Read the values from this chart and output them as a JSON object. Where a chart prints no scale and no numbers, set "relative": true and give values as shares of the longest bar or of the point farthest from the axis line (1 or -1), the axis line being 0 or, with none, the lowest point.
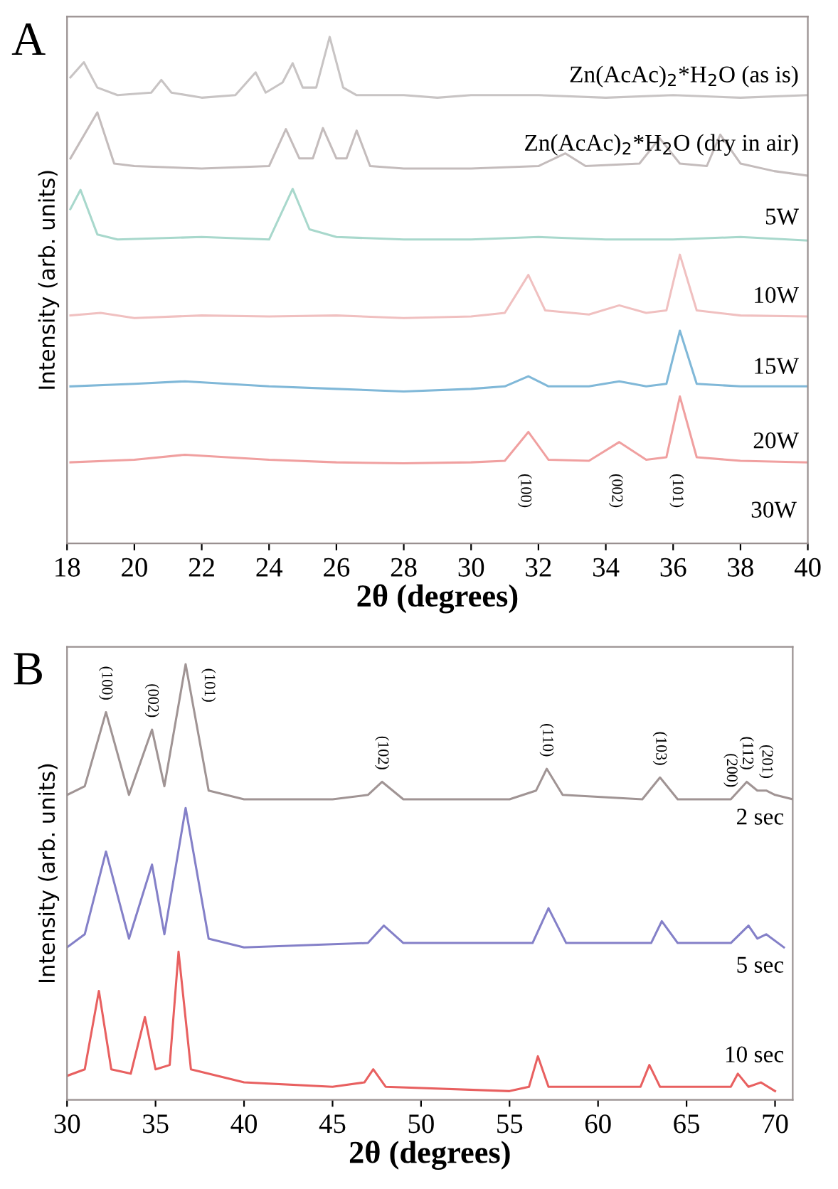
{
  "chart_data": [
    {
      "type": "line",
      "title": "A",
      "xlabel": "2θ (degrees)",
      "ylabel": "Intensity (arb. units)",
      "relative": true,
      "tick_labels": "x",
      "xlim": [
        18,
        40
      ],
      "xticks": [
        18,
        20,
        22,
        24,
        26,
        28,
        30,
        32,
        34,
        36,
        38,
        40
      ],
      "series": [
        {
          "name": "Zn(AcAc)$_{2}$*H$_{2}$O (as is)",
          "color": "#c8c4c4",
          "x": [
            18.1,
            18.5,
            18.9,
            19.5,
            20.5,
            20.8,
            21.1,
            22,
            23,
            23.6,
            23.9,
            24.4,
            24.7,
            25.0,
            25.4,
            25.8,
            26.2,
            26.6,
            28,
            29,
            30,
            32,
            34,
            36,
            38,
            40
          ],
          "values": [
            0.92,
            0.95,
            0.9,
            0.885,
            0.89,
            0.915,
            0.89,
            0.88,
            0.885,
            0.93,
            0.89,
            0.91,
            0.948,
            0.9,
            0.9,
            1.0,
            0.9,
            0.885,
            0.885,
            0.88,
            0.885,
            0.885,
            0.88,
            0.885,
            0.88,
            0.885
          ]
        },
        {
          "name": "Zn(AcAc)$_{2}$*H$_{2}$O (dry in air)",
          "color": "#c4bcbc",
          "x": [
            18.1,
            18.9,
            19.4,
            20,
            22,
            24,
            24.5,
            24.9,
            25.3,
            25.6,
            26,
            26.3,
            26.6,
            27,
            28,
            30,
            32,
            32.8,
            33.4,
            35,
            35.6,
            36.2,
            37,
            37.4,
            38,
            39,
            40
          ],
          "values": [
            0.76,
            0.851,
            0.75,
            0.745,
            0.74,
            0.745,
            0.818,
            0.76,
            0.76,
            0.82,
            0.76,
            0.76,
            0.815,
            0.745,
            0.74,
            0.74,
            0.745,
            0.77,
            0.745,
            0.75,
            0.8,
            0.75,
            0.745,
            0.807,
            0.75,
            0.735,
            0.726
          ]
        },
        {
          "name": "5W",
          "color": "#a8d8cc",
          "x": [
            18.1,
            18.4,
            18.9,
            19.5,
            22,
            24,
            24.7,
            25.2,
            26,
            28,
            30,
            32,
            34,
            36,
            38,
            40
          ],
          "values": [
            0.66,
            0.698,
            0.61,
            0.6,
            0.605,
            0.6,
            0.7,
            0.62,
            0.605,
            0.6,
            0.6,
            0.605,
            0.6,
            0.6,
            0.605,
            0.598
          ]
        },
        {
          "name": "10W",
          "color": "#f0c0c0",
          "x": [
            18.1,
            19,
            20,
            22,
            24,
            26,
            28,
            30,
            31,
            31.7,
            32.2,
            33.5,
            34.4,
            35.2,
            35.8,
            36.2,
            36.7,
            38,
            40
          ],
          "values": [
            0.45,
            0.455,
            0.445,
            0.45,
            0.448,
            0.45,
            0.445,
            0.448,
            0.455,
            0.53,
            0.46,
            0.452,
            0.47,
            0.455,
            0.46,
            0.57,
            0.46,
            0.45,
            0.448
          ]
        },
        {
          "name": "15W",
          "color": "#80b8d8",
          "x": [
            18.1,
            20,
            21.5,
            24,
            26,
            28,
            30,
            31,
            31.7,
            32.3,
            33.5,
            34.4,
            35.2,
            35.8,
            36.2,
            36.7,
            38,
            40
          ],
          "values": [
            0.31,
            0.315,
            0.32,
            0.31,
            0.305,
            0.3,
            0.305,
            0.31,
            0.33,
            0.31,
            0.31,
            0.32,
            0.31,
            0.315,
            0.42,
            0.315,
            0.31,
            0.31
          ]
        },
        {
          "name": "20W",
          "color": "#f0a0a0",
          "x": [
            18.1,
            20,
            21.5,
            24,
            26,
            28,
            30,
            31,
            31.7,
            32.3,
            33.5,
            34.4,
            35.2,
            35.8,
            36.2,
            36.7,
            38,
            40
          ],
          "values": [
            0.16,
            0.165,
            0.175,
            0.165,
            0.16,
            0.158,
            0.16,
            0.163,
            0.22,
            0.165,
            0.163,
            0.2,
            0.165,
            0.17,
            0.29,
            0.17,
            0.163,
            0.16
          ]
        }
      ],
      "annotations": [
        "30W",
        "(100)",
        "(002)",
        "(101)"
      ]
    },
    {
      "type": "line",
      "title": "B",
      "xlabel": "2θ (degrees)",
      "ylabel": "Intensity (arb. units)",
      "relative": true,
      "tick_labels": "x",
      "xlim": [
        30,
        71
      ],
      "xticks": [
        30,
        35,
        40,
        45,
        50,
        55,
        60,
        65,
        70
      ],
      "series": [
        {
          "name": "2 sec",
          "color": "#a09494",
          "x": [
            30,
            31,
            32.2,
            33.5,
            34.8,
            35.5,
            36.7,
            38,
            40,
            45,
            47,
            47.8,
            49,
            55,
            56.5,
            57.1,
            58,
            62.5,
            63.5,
            64.5,
            67.5,
            68.4,
            69,
            69.5,
            70,
            71
          ],
          "values": [
            0.7,
            0.72,
            0.89,
            0.7,
            0.85,
            0.72,
            1.0,
            0.71,
            0.69,
            0.69,
            0.7,
            0.73,
            0.69,
            0.69,
            0.71,
            0.76,
            0.7,
            0.69,
            0.74,
            0.69,
            0.69,
            0.73,
            0.71,
            0.71,
            0.7,
            0.69
          ]
        },
        {
          "name": "5 sec",
          "color": "#8480c8",
          "x": [
            30,
            31,
            32.2,
            33.5,
            34.8,
            35.5,
            36.7,
            38,
            40,
            47,
            47.9,
            49,
            56.3,
            57.2,
            58.2,
            63,
            63.6,
            64.5,
            67.5,
            68.5,
            69,
            69.5,
            70.5
          ],
          "values": [
            0.35,
            0.38,
            0.57,
            0.37,
            0.54,
            0.38,
            0.67,
            0.37,
            0.35,
            0.36,
            0.4,
            0.36,
            0.36,
            0.44,
            0.36,
            0.36,
            0.41,
            0.36,
            0.36,
            0.4,
            0.37,
            0.38,
            0.35
          ]
        },
        {
          "name": "10 sec",
          "color": "#e86060",
          "x": [
            30,
            31,
            31.8,
            32.5,
            33.6,
            34.4,
            35,
            35.8,
            36.3,
            37,
            40,
            45,
            46.8,
            47.3,
            48,
            55,
            56.1,
            56.6,
            57.2,
            62.4,
            62.9,
            63.5,
            67.5,
            67.9,
            68.5,
            69.2,
            70
          ],
          "values": [
            0.055,
            0.07,
            0.25,
            0.07,
            0.06,
            0.19,
            0.07,
            0.08,
            0.34,
            0.07,
            0.04,
            0.03,
            0.04,
            0.07,
            0.03,
            0.02,
            0.03,
            0.1,
            0.03,
            0.03,
            0.08,
            0.03,
            0.03,
            0.06,
            0.03,
            0.04,
            0.02
          ]
        }
      ],
      "annotations": [
        {
          "text": "(100)",
          "x": 32.2,
          "y": 0.89
        },
        {
          "text": "(002)",
          "x": 34.8,
          "y": 0.85
        },
        {
          "text": "(101)",
          "x": 36.7,
          "y": 1.0
        },
        {
          "text": "(102)",
          "x": 47.8,
          "y": 0.73
        },
        {
          "text": "(110)",
          "x": 57.1,
          "y": 0.76
        },
        {
          "text": "(103)",
          "x": 63.5,
          "y": 0.74
        },
        {
          "text": "(200)",
          "x": 67.5,
          "y": 0.69
        },
        {
          "text": "(112)",
          "x": 68.4,
          "y": 0.73
        },
        {
          "text": "(201)",
          "x": 69.5,
          "y": 0.71
        }
      ]
    }
  ]
}
